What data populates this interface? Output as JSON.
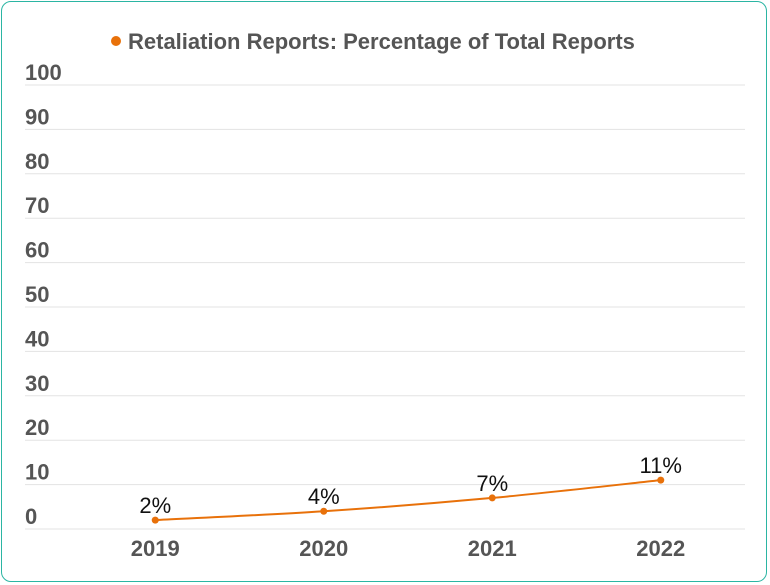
{
  "chart_data": {
    "type": "line",
    "series": [
      {
        "name": "Retaliation Reports: Percentage of Total Reports",
        "color": "#e8710a",
        "values": [
          2,
          4,
          7,
          11
        ],
        "value_labels": [
          "2%",
          "4%",
          "7%",
          "11%"
        ]
      }
    ],
    "categories": [
      "2019",
      "2020",
      "2021",
      "2022"
    ],
    "ylim": [
      0,
      100
    ],
    "yticks": [
      0,
      10,
      20,
      30,
      40,
      50,
      60,
      70,
      80,
      90,
      100
    ],
    "grid": true,
    "legend": "top"
  }
}
